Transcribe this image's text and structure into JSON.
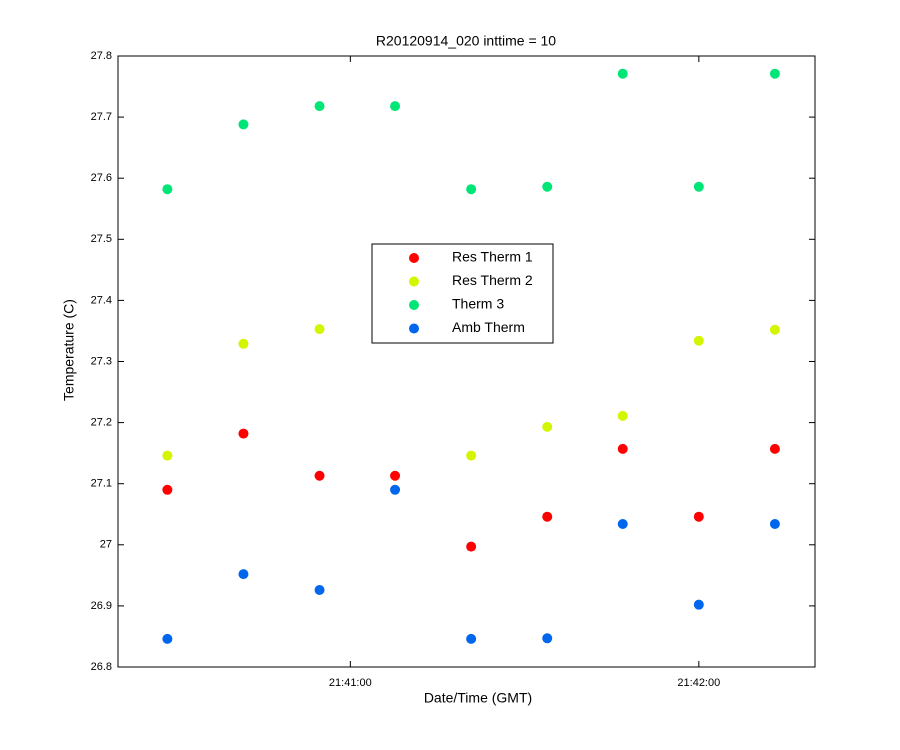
{
  "chart_data": {
    "type": "scatter",
    "title": "R20120914_020 inttime = 10",
    "x_label": "Date/Time (GMT)",
    "y_label": "Temperature (C)",
    "x": [
      78028.5,
      78041.6,
      78054.7,
      78067.7,
      78080.8,
      78093.9,
      78106.9,
      78120,
      78133.1
    ],
    "series": [
      {
        "name": "Res Therm 1",
        "color": "#ff0000",
        "values": [
          27.09,
          27.182,
          27.113,
          27.113,
          26.997,
          27.046,
          27.157,
          27.046,
          27.157
        ]
      },
      {
        "name": "Res Therm 2",
        "color": "#d4f500",
        "values": [
          27.146,
          27.329,
          27.353,
          null,
          27.146,
          27.193,
          27.211,
          27.334,
          27.352
        ]
      },
      {
        "name": "Therm 3",
        "color": "#00e676",
        "values": [
          27.582,
          27.688,
          27.718,
          27.718,
          27.582,
          27.586,
          27.771,
          27.586,
          27.771
        ]
      },
      {
        "name": "Amb Therm",
        "color": "#0066ee",
        "values": [
          26.846,
          26.952,
          26.926,
          27.09,
          26.846,
          26.847,
          27.034,
          26.902,
          27.034
        ]
      }
    ],
    "xlim": [
      78020,
      78140
    ],
    "xticks": [
      {
        "value": 78060,
        "label": "21:41:00"
      },
      {
        "value": 78120,
        "label": "21:42:00"
      }
    ],
    "ylim": [
      26.8,
      27.8
    ],
    "yticks": [
      26.8,
      26.9,
      27,
      27.1,
      27.2,
      27.3,
      27.4,
      27.5,
      27.6,
      27.7,
      27.8
    ],
    "legend": "center"
  }
}
